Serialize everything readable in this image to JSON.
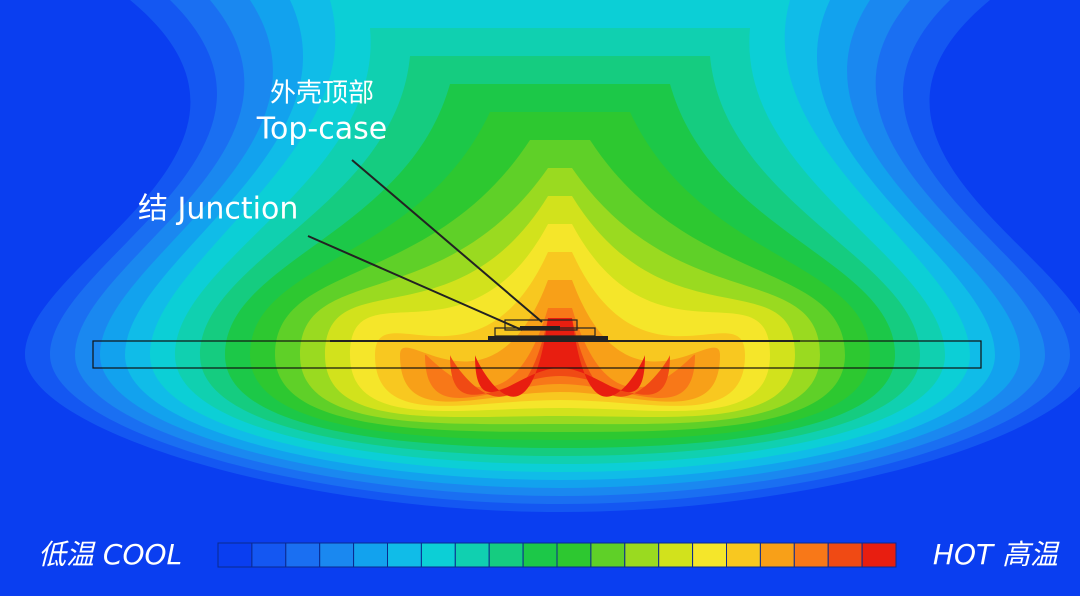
{
  "annotations": [
    {
      "label": "外壳顶部"
    },
    {
      "label": "Top-case"
    },
    {
      "label": "结 Junction"
    }
  ],
  "legend": {
    "cool": "低温 COOL",
    "hot": "HOT 高温"
  }
}
